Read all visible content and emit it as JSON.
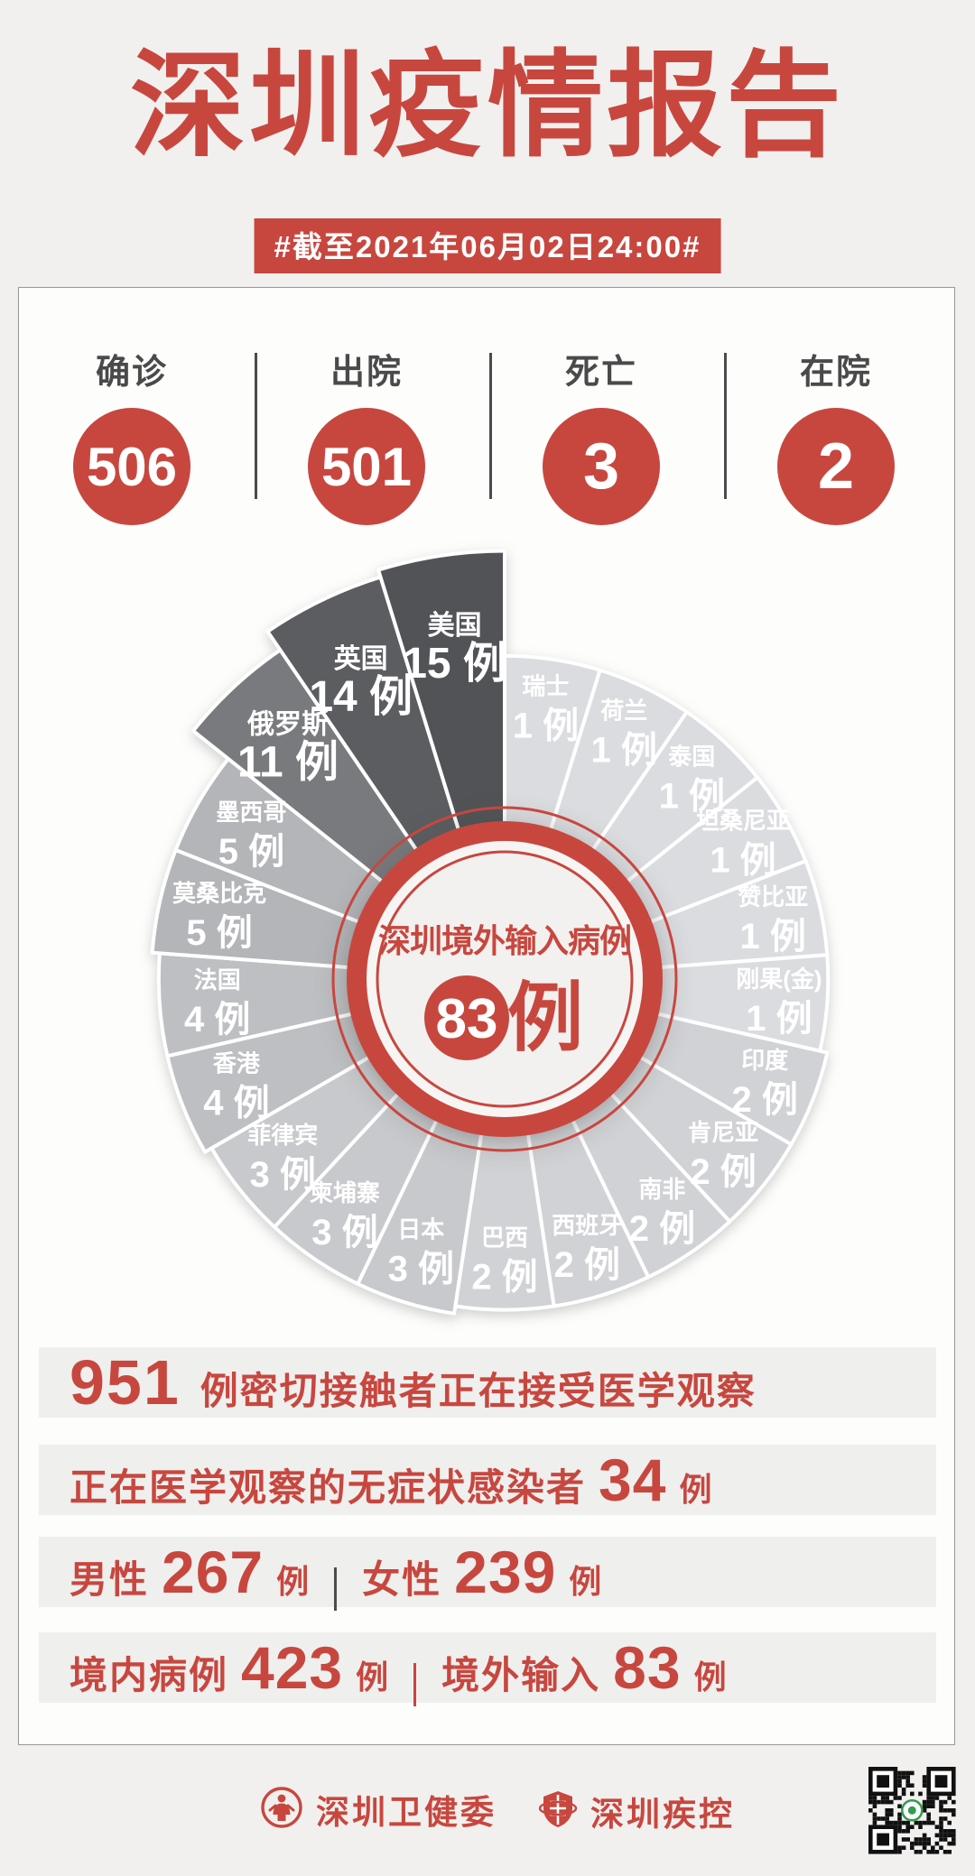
{
  "header": {
    "title": "深圳疫情报告",
    "date_banner": "#截至2021年06月02日24:00#"
  },
  "stats": {
    "items": [
      {
        "label": "确诊",
        "value": "506"
      },
      {
        "label": "出院",
        "value": "501"
      },
      {
        "label": "死亡",
        "value": "3"
      },
      {
        "label": "在院",
        "value": "2"
      }
    ]
  },
  "chart_data": {
    "type": "pie",
    "variant": "rose-equal-angle",
    "title": "深圳境外输入病例",
    "total": 83,
    "unit": "例",
    "center_total_number": "83",
    "center_total_unit": "例",
    "order": "clockwise-from-12-oclock",
    "categories": [
      "瑞士",
      "荷兰",
      "泰国",
      "坦桑尼亚",
      "赞比亚",
      "刚果(金)",
      "印度",
      "肯尼亚",
      "南非",
      "西班牙",
      "巴西",
      "日本",
      "柬埔寨",
      "菲律宾",
      "香港",
      "法国",
      "莫桑比克",
      "墨西哥",
      "俄罗斯",
      "英国",
      "美国"
    ],
    "values": [
      1,
      1,
      1,
      1,
      1,
      1,
      2,
      2,
      2,
      2,
      2,
      3,
      3,
      3,
      4,
      4,
      5,
      5,
      11,
      14,
      15
    ],
    "slices": [
      {
        "country": "瑞士",
        "value": 1,
        "value_label": "1 例"
      },
      {
        "country": "荷兰",
        "value": 1,
        "value_label": "1 例"
      },
      {
        "country": "泰国",
        "value": 1,
        "value_label": "1 例"
      },
      {
        "country": "坦桑尼亚",
        "value": 1,
        "value_label": "1 例"
      },
      {
        "country": "赞比亚",
        "value": 1,
        "value_label": "1 例"
      },
      {
        "country": "刚果(金)",
        "value": 1,
        "value_label": "1 例"
      },
      {
        "country": "印度",
        "value": 2,
        "value_label": "2 例"
      },
      {
        "country": "肯尼亚",
        "value": 2,
        "value_label": "2 例"
      },
      {
        "country": "南非",
        "value": 2,
        "value_label": "2 例"
      },
      {
        "country": "西班牙",
        "value": 2,
        "value_label": "2 例"
      },
      {
        "country": "巴西",
        "value": 2,
        "value_label": "2 例"
      },
      {
        "country": "日本",
        "value": 3,
        "value_label": "3 例"
      },
      {
        "country": "柬埔寨",
        "value": 3,
        "value_label": "3 例"
      },
      {
        "country": "菲律宾",
        "value": 3,
        "value_label": "3 例"
      },
      {
        "country": "香港",
        "value": 4,
        "value_label": "4 例"
      },
      {
        "country": "法国",
        "value": 4,
        "value_label": "4 例"
      },
      {
        "country": "莫桑比克",
        "value": 5,
        "value_label": "5 例"
      },
      {
        "country": "墨西哥",
        "value": 5,
        "value_label": "5 例"
      },
      {
        "country": "俄罗斯",
        "value": 11,
        "value_label": "11 例"
      },
      {
        "country": "英国",
        "value": 14,
        "value_label": "14 例"
      },
      {
        "country": "美国",
        "value": 15,
        "value_label": "15 例"
      }
    ]
  },
  "summary": {
    "rows": [
      {
        "name": "close-contacts",
        "segments": [
          {
            "t": "num-xl",
            "v": "951"
          },
          {
            "t": "text",
            "v": "例密切接触者正在接受医学观察"
          }
        ]
      },
      {
        "name": "asymptomatic",
        "segments": [
          {
            "t": "text",
            "v": "正在医学观察的无症状感染者"
          },
          {
            "t": "num",
            "v": "34"
          },
          {
            "t": "unit",
            "v": "例"
          }
        ]
      },
      {
        "name": "gender",
        "segments": [
          {
            "t": "text",
            "v": "男性"
          },
          {
            "t": "num",
            "v": "267"
          },
          {
            "t": "unit",
            "v": "例"
          },
          {
            "t": "div-gray",
            "v": ""
          },
          {
            "t": "text",
            "v": "女性"
          },
          {
            "t": "num",
            "v": "239"
          },
          {
            "t": "unit",
            "v": "例"
          }
        ]
      },
      {
        "name": "origin",
        "segments": [
          {
            "t": "text",
            "v": "境内病例"
          },
          {
            "t": "num",
            "v": "423"
          },
          {
            "t": "unit",
            "v": "例"
          },
          {
            "t": "div-red",
            "v": ""
          },
          {
            "t": "text",
            "v": "境外输入"
          },
          {
            "t": "num",
            "v": "83"
          },
          {
            "t": "unit",
            "v": "例"
          }
        ]
      }
    ]
  },
  "footer": {
    "org1": "深圳卫健委",
    "org2": "深圳疾控"
  },
  "colors": {
    "red": "#c7473f",
    "page_bg": "#f1f0ee",
    "slice_darkest": "#55565a",
    "slice_lightest": "#dcddde",
    "stat_label": "#4a4a4b"
  }
}
